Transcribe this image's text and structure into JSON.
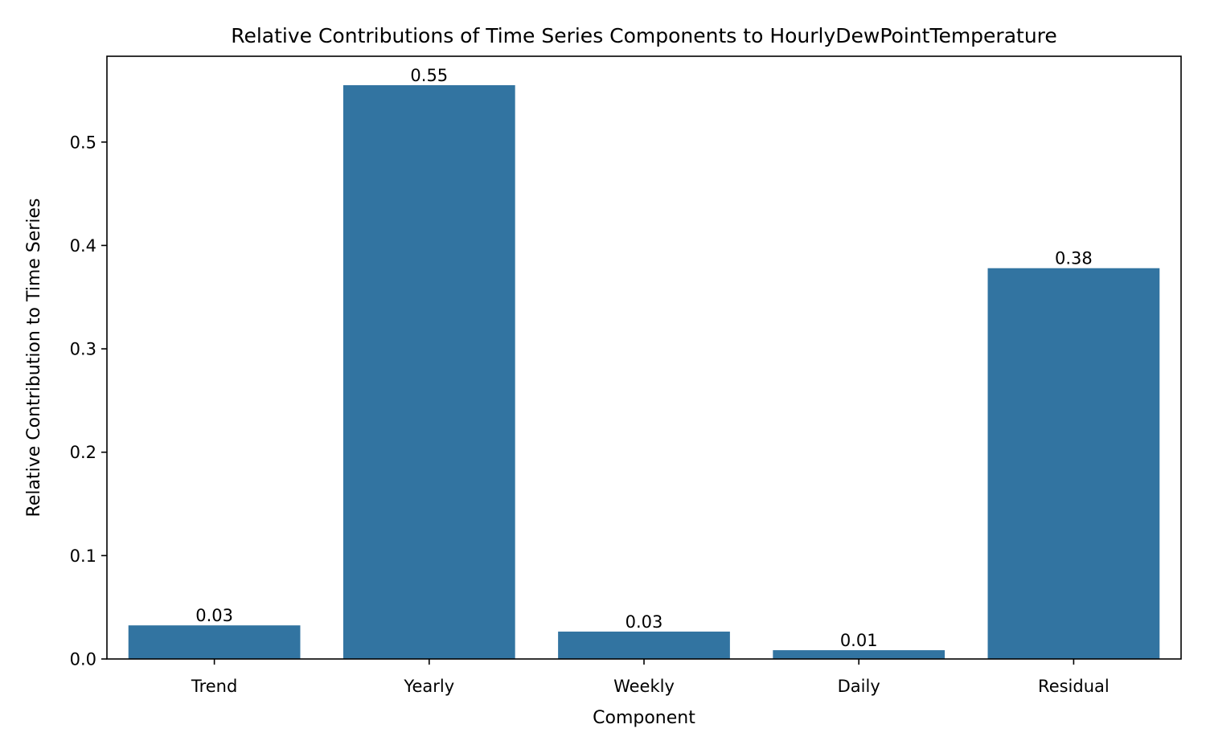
{
  "chart_data": {
    "type": "bar",
    "title": "Relative Contributions of Time Series Components to HourlyDewPointTemperature",
    "xlabel": "Component",
    "ylabel": "Relative Contribution to Time Series",
    "categories": [
      "Trend",
      "Yearly",
      "Weekly",
      "Daily",
      "Residual"
    ],
    "values": [
      0.0325,
      0.555,
      0.0265,
      0.0085,
      0.378
    ],
    "data_labels": [
      "0.03",
      "0.55",
      "0.03",
      "0.01",
      "0.38"
    ],
    "ylim": [
      0,
      0.583
    ],
    "yticks": [
      0.0,
      0.1,
      0.2,
      0.3,
      0.4,
      0.5
    ],
    "ytick_labels": [
      "0.0",
      "0.1",
      "0.2",
      "0.3",
      "0.4",
      "0.5"
    ],
    "grid": false,
    "bar_color": "#3274a1"
  }
}
